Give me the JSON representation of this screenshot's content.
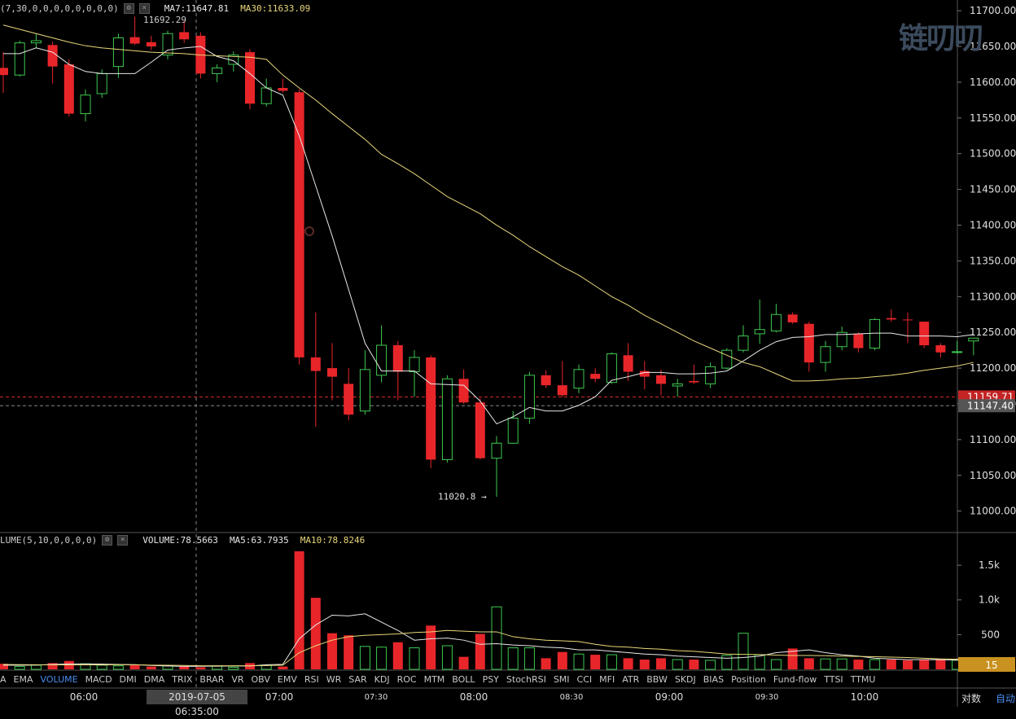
{
  "logo": {
    "text": "链叨叨"
  },
  "legend_main": {
    "params": "(7,30,0,0,0,0,0,0,0,0)",
    "ma7": "MA7:11647.81",
    "ma30": "MA30:11633.09",
    "ma7_color": "#e8e8e8",
    "ma30_color": "#e8d77a"
  },
  "legend_vol": {
    "params": "LUME(5,10,0,0,0,0)",
    "volume": "VOLUME:78.5663",
    "ma5": "MA5:63.7935",
    "ma10": "MA10:78.8246"
  },
  "indicator_tabs": [
    "A",
    "EMA",
    "VOLUME",
    "MACD",
    "DMI",
    "DMA",
    "TRIX",
    "BRAR",
    "VR",
    "OBV",
    "EMV",
    "RSI",
    "WR",
    "SAR",
    "KDJ",
    "ROC",
    "MTM",
    "BOLL",
    "PSY",
    "StochRSI",
    "SMI",
    "CCI",
    "MFI",
    "ATR",
    "BBW",
    "SKDJ",
    "BIAS",
    "Position",
    "Fund-flow",
    "TTSI",
    "TTMU"
  ],
  "active_tab": "VOLUME",
  "time_axis": {
    "labels": [
      {
        "t": "06:00",
        "small": false
      },
      {
        "t": "07:00",
        "small": false
      },
      {
        "t": "07:30",
        "small": true
      },
      {
        "t": "08:00",
        "small": false
      },
      {
        "t": "08:30",
        "small": true
      },
      {
        "t": "09:00",
        "small": false
      },
      {
        "t": "09:30",
        "small": true
      },
      {
        "t": "10:00",
        "small": false
      }
    ],
    "crosshair_time": "2019-07-05 06:35:00"
  },
  "bottom_right": {
    "log": "对数",
    "auto": "自动"
  },
  "chart_data": {
    "type": "candlestick",
    "interval_minutes": 5,
    "price_axis": {
      "ylim": [
        10970,
        11715
      ],
      "ticks": [
        11000,
        11050,
        11100,
        11150,
        11200,
        11250,
        11300,
        11350,
        11400,
        11450,
        11500,
        11550,
        11600,
        11650,
        11700
      ]
    },
    "volume_axis": {
      "ylim": [
        0,
        1900
      ],
      "ticks": [
        {
          "v": 500,
          "l": "500"
        },
        {
          "v": 1000,
          "l": "1.0k"
        },
        {
          "v": 1500,
          "l": "1.5k"
        }
      ]
    },
    "up_color": "#3ec94f",
    "down_color": "#e8262a",
    "price_lines": [
      {
        "value": 11159.71,
        "label": "11159.71",
        "color": "#d42a2a",
        "style": "dashed"
      },
      {
        "value": 11147.4,
        "label": "11147.40",
        "color": "#888888",
        "style": "dashed"
      }
    ],
    "volume_current_label": "15",
    "annotations": [
      {
        "text": "11692.29",
        "price": 11692.29
      },
      {
        "text": "11020.8 →",
        "price": 11020.8
      }
    ],
    "candles": [
      {
        "o": 11620,
        "h": 11642,
        "l": 11585,
        "c": 11610
      },
      {
        "o": 11610,
        "h": 11658,
        "l": 11608,
        "c": 11655
      },
      {
        "o": 11655,
        "h": 11668,
        "l": 11648,
        "c": 11658
      },
      {
        "o": 11652,
        "h": 11657,
        "l": 11598,
        "c": 11622
      },
      {
        "o": 11625,
        "h": 11632,
        "l": 11552,
        "c": 11556
      },
      {
        "o": 11556,
        "h": 11590,
        "l": 11545,
        "c": 11582
      },
      {
        "o": 11584,
        "h": 11618,
        "l": 11578,
        "c": 11612
      },
      {
        "o": 11622,
        "h": 11668,
        "l": 11606,
        "c": 11662
      },
      {
        "o": 11663,
        "h": 11692,
        "l": 11652,
        "c": 11654
      },
      {
        "o": 11656,
        "h": 11665,
        "l": 11645,
        "c": 11650
      },
      {
        "o": 11638,
        "h": 11672,
        "l": 11632,
        "c": 11668
      },
      {
        "o": 11670,
        "h": 11685,
        "l": 11655,
        "c": 11660
      },
      {
        "o": 11665,
        "h": 11670,
        "l": 11605,
        "c": 11612
      },
      {
        "o": 11612,
        "h": 11625,
        "l": 11600,
        "c": 11620
      },
      {
        "o": 11625,
        "h": 11643,
        "l": 11615,
        "c": 11638
      },
      {
        "o": 11642,
        "h": 11646,
        "l": 11562,
        "c": 11570
      },
      {
        "o": 11570,
        "h": 11605,
        "l": 11566,
        "c": 11592
      },
      {
        "o": 11592,
        "h": 11605,
        "l": 11585,
        "c": 11588
      },
      {
        "o": 11586,
        "h": 11590,
        "l": 11205,
        "c": 11215
      },
      {
        "o": 11215,
        "h": 11278,
        "l": 11118,
        "c": 11196
      },
      {
        "o": 11200,
        "h": 11235,
        "l": 11155,
        "c": 11188
      },
      {
        "o": 11178,
        "h": 11200,
        "l": 11127,
        "c": 11135
      },
      {
        "o": 11140,
        "h": 11225,
        "l": 11135,
        "c": 11198
      },
      {
        "o": 11190,
        "h": 11260,
        "l": 11180,
        "c": 11232
      },
      {
        "o": 11232,
        "h": 11238,
        "l": 11155,
        "c": 11195
      },
      {
        "o": 11195,
        "h": 11225,
        "l": 11160,
        "c": 11215
      },
      {
        "o": 11215,
        "h": 11218,
        "l": 11060,
        "c": 11072
      },
      {
        "o": 11072,
        "h": 11190,
        "l": 11068,
        "c": 11185
      },
      {
        "o": 11185,
        "h": 11198,
        "l": 11150,
        "c": 11152
      },
      {
        "o": 11152,
        "h": 11158,
        "l": 11072,
        "c": 11074
      },
      {
        "o": 11074,
        "h": 11105,
        "l": 11020,
        "c": 11095
      },
      {
        "o": 11095,
        "h": 11140,
        "l": 11094,
        "c": 11130
      },
      {
        "o": 11130,
        "h": 11195,
        "l": 11122,
        "c": 11190
      },
      {
        "o": 11190,
        "h": 11197,
        "l": 11172,
        "c": 11176
      },
      {
        "o": 11176,
        "h": 11210,
        "l": 11160,
        "c": 11162
      },
      {
        "o": 11172,
        "h": 11205,
        "l": 11165,
        "c": 11198
      },
      {
        "o": 11192,
        "h": 11200,
        "l": 11180,
        "c": 11185
      },
      {
        "o": 11180,
        "h": 11222,
        "l": 11178,
        "c": 11220
      },
      {
        "o": 11218,
        "h": 11235,
        "l": 11182,
        "c": 11195
      },
      {
        "o": 11196,
        "h": 11210,
        "l": 11170,
        "c": 11188
      },
      {
        "o": 11190,
        "h": 11198,
        "l": 11162,
        "c": 11178
      },
      {
        "o": 11175,
        "h": 11185,
        "l": 11160,
        "c": 11178
      },
      {
        "o": 11182,
        "h": 11205,
        "l": 11178,
        "c": 11180
      },
      {
        "o": 11178,
        "h": 11208,
        "l": 11172,
        "c": 11202
      },
      {
        "o": 11200,
        "h": 11228,
        "l": 11198,
        "c": 11225
      },
      {
        "o": 11225,
        "h": 11260,
        "l": 11222,
        "c": 11245
      },
      {
        "o": 11248,
        "h": 11296,
        "l": 11234,
        "c": 11254
      },
      {
        "o": 11252,
        "h": 11290,
        "l": 11250,
        "c": 11275
      },
      {
        "o": 11275,
        "h": 11278,
        "l": 11262,
        "c": 11264
      },
      {
        "o": 11262,
        "h": 11265,
        "l": 11195,
        "c": 11208
      },
      {
        "o": 11208,
        "h": 11238,
        "l": 11195,
        "c": 11230
      },
      {
        "o": 11230,
        "h": 11258,
        "l": 11225,
        "c": 11250
      },
      {
        "o": 11248,
        "h": 11250,
        "l": 11222,
        "c": 11228
      },
      {
        "o": 11228,
        "h": 11270,
        "l": 11225,
        "c": 11268
      },
      {
        "o": 11270,
        "h": 11282,
        "l": 11265,
        "c": 11268
      },
      {
        "o": 11268,
        "h": 11278,
        "l": 11235,
        "c": 11267
      },
      {
        "o": 11265,
        "h": 11265,
        "l": 11228,
        "c": 11232
      },
      {
        "o": 11232,
        "h": 11235,
        "l": 11215,
        "c": 11222
      },
      {
        "o": 11222,
        "h": 11238,
        "l": 11220,
        "c": 11223
      },
      {
        "o": 11238,
        "h": 11242,
        "l": 11218,
        "c": 11242
      }
    ],
    "volume": [
      80,
      40,
      60,
      90,
      120,
      80,
      60,
      50,
      60,
      40,
      50,
      40,
      30,
      50,
      30,
      90,
      60,
      40,
      1700,
      1030,
      520,
      490,
      330,
      320,
      390,
      310,
      630,
      340,
      180,
      510,
      900,
      310,
      310,
      160,
      250,
      220,
      210,
      210,
      160,
      140,
      160,
      140,
      140,
      130,
      200,
      520,
      210,
      140,
      300,
      160,
      150,
      150,
      140,
      140,
      140,
      130,
      140,
      150,
      130,
      78
    ],
    "ma7": [
      11640,
      11640,
      11648,
      11642,
      11625,
      11615,
      11612,
      11612,
      11612,
      11628,
      11645,
      11648,
      11650,
      11636,
      11630,
      11612,
      11592,
      11582,
      11525,
      11455,
      11385,
      11310,
      11235,
      11196,
      11196,
      11196,
      11178,
      11177,
      11176,
      11154,
      11122,
      11132,
      11145,
      11140,
      11140,
      11148,
      11160,
      11183,
      11188,
      11194,
      11194,
      11192,
      11192,
      11193,
      11196,
      11210,
      11225,
      11237,
      11243,
      11244,
      11247,
      11247,
      11248,
      11249,
      11249,
      11245,
      11245,
      11245,
      11244,
      11247
    ],
    "ma30": [
      11680,
      11674,
      11668,
      11662,
      11656,
      11651,
      11648,
      11646,
      11644,
      11642,
      11641,
      11640,
      11638,
      11637,
      11636,
      11635,
      11632,
      11610,
      11592,
      11575,
      11556,
      11538,
      11520,
      11499,
      11486,
      11472,
      11456,
      11440,
      11428,
      11416,
      11400,
      11386,
      11370,
      11356,
      11342,
      11330,
      11315,
      11300,
      11288,
      11274,
      11262,
      11250,
      11238,
      11228,
      11218,
      11208,
      11202,
      11192,
      11182,
      11182,
      11183,
      11185,
      11186,
      11188,
      11190,
      11193,
      11197,
      11200,
      11203,
      11208
    ],
    "vol_ma5": [
      60,
      58,
      62,
      70,
      78,
      78,
      76,
      70,
      68,
      56,
      48,
      42,
      44,
      46,
      48,
      48,
      66,
      72,
      440,
      640,
      780,
      770,
      800,
      680,
      560,
      420,
      440,
      450,
      420,
      360,
      370,
      350,
      340,
      320,
      310,
      280,
      280,
      260,
      240,
      220,
      210,
      190,
      180,
      170,
      160,
      170,
      190,
      240,
      260,
      280,
      240,
      210,
      190,
      160,
      150,
      140,
      140,
      138,
      135,
      128
    ],
    "vol_ma10": [
      70,
      68,
      66,
      65,
      64,
      64,
      65,
      66,
      66,
      60,
      58,
      56,
      52,
      52,
      52,
      52,
      54,
      60,
      240,
      340,
      420,
      470,
      490,
      500,
      510,
      530,
      540,
      560,
      550,
      540,
      540,
      470,
      440,
      420,
      410,
      400,
      360,
      330,
      320,
      300,
      290,
      270,
      260,
      240,
      220,
      215,
      212,
      205,
      200,
      200,
      196,
      190,
      186,
      182,
      176,
      170,
      160,
      150,
      145,
      140
    ]
  }
}
